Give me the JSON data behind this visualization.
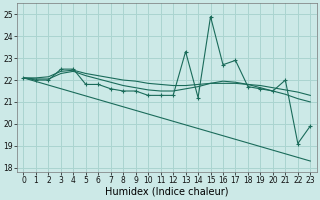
{
  "xlabel": "Humidex (Indice chaleur)",
  "xlim": [
    -0.5,
    23.5
  ],
  "ylim": [
    17.8,
    25.5
  ],
  "yticks": [
    18,
    19,
    20,
    21,
    22,
    23,
    24,
    25
  ],
  "xticks": [
    0,
    1,
    2,
    3,
    4,
    5,
    6,
    7,
    8,
    9,
    10,
    11,
    12,
    13,
    14,
    15,
    16,
    17,
    18,
    19,
    20,
    21,
    22,
    23
  ],
  "background_color": "#cce9e7",
  "grid_color": "#aad4d0",
  "line_color": "#1a6b5a",
  "series1_x": [
    0,
    1,
    2,
    3,
    4,
    5,
    6,
    7,
    8,
    9,
    10,
    11,
    12,
    13,
    14,
    15,
    16,
    17,
    18,
    19,
    20,
    21,
    22,
    23
  ],
  "series1_y": [
    22.1,
    22.0,
    22.0,
    22.5,
    22.5,
    21.8,
    21.8,
    21.6,
    21.5,
    21.5,
    21.3,
    21.3,
    21.3,
    23.3,
    21.2,
    24.9,
    22.7,
    22.9,
    21.7,
    21.6,
    21.5,
    22.0,
    19.1,
    19.9
  ],
  "series2_x": [
    0,
    1,
    2,
    3,
    4,
    5,
    6,
    7,
    8,
    9,
    10,
    11,
    12,
    13,
    14,
    15,
    16,
    17,
    18,
    19,
    20,
    21,
    22,
    23
  ],
  "series2_y": [
    22.1,
    22.1,
    22.15,
    22.4,
    22.45,
    22.3,
    22.2,
    22.1,
    22.0,
    21.95,
    21.85,
    21.8,
    21.75,
    21.75,
    21.8,
    21.85,
    21.85,
    21.85,
    21.8,
    21.75,
    21.65,
    21.55,
    21.45,
    21.3
  ],
  "series3_x": [
    0,
    1,
    2,
    3,
    4,
    5,
    6,
    7,
    8,
    9,
    10,
    11,
    12,
    13,
    14,
    15,
    16,
    17,
    18,
    19,
    20,
    21,
    22,
    23
  ],
  "series3_y": [
    22.1,
    22.05,
    22.05,
    22.3,
    22.4,
    22.2,
    22.05,
    21.9,
    21.75,
    21.65,
    21.55,
    21.5,
    21.5,
    21.6,
    21.7,
    21.85,
    21.95,
    21.9,
    21.8,
    21.65,
    21.5,
    21.35,
    21.15,
    21.0
  ],
  "series4_x": [
    0,
    23
  ],
  "series4_y": [
    22.1,
    18.3
  ],
  "tick_fontsize": 5.5,
  "label_fontsize": 7.0
}
